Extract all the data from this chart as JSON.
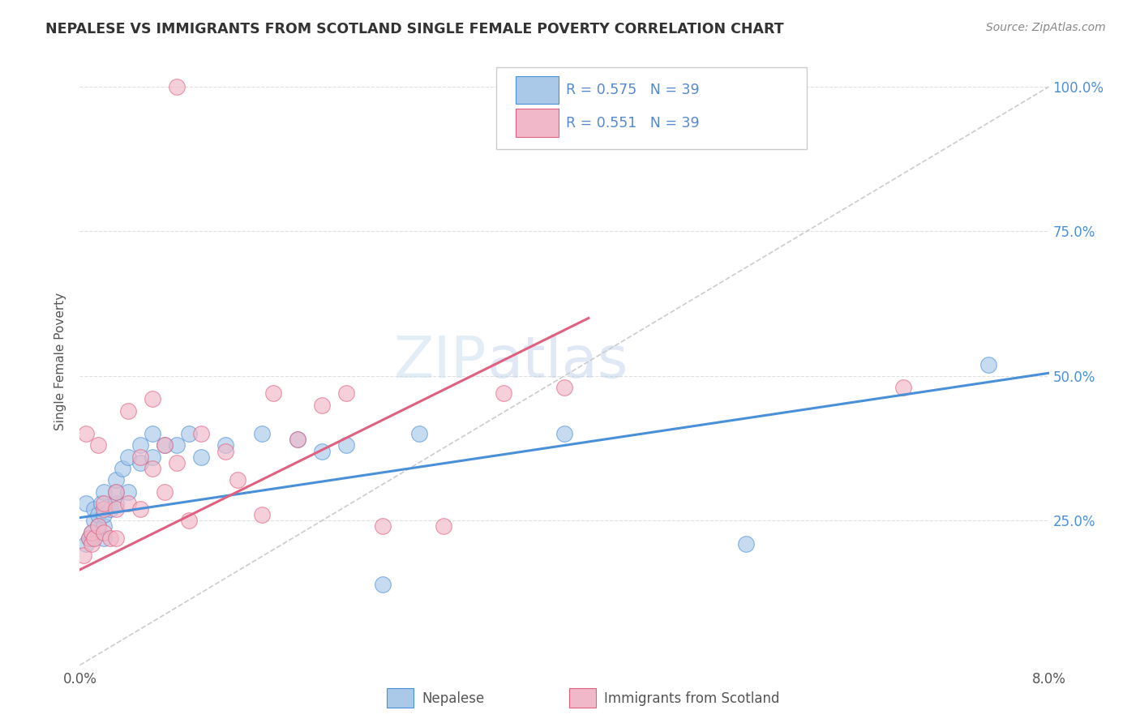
{
  "title": "NEPALESE VS IMMIGRANTS FROM SCOTLAND SINGLE FEMALE POVERTY CORRELATION CHART",
  "source": "Source: ZipAtlas.com",
  "ylabel": "Single Female Poverty",
  "R_nepalese": 0.575,
  "N_nepalese": 39,
  "R_scotland": 0.551,
  "N_scotland": 39,
  "color_nepalese": "#aac8e8",
  "color_scotland": "#f0b8c8",
  "color_line_nepalese": "#4a90d9",
  "color_line_scotland": "#e06080",
  "color_diagonal": "#cccccc",
  "color_title": "#333333",
  "color_source": "#888888",
  "color_legend_text": "#5588cc",
  "background_color": "#ffffff",
  "nepalese_x": [
    0.0005,
    0.0005,
    0.0008,
    0.001,
    0.001,
    0.0012,
    0.0012,
    0.0015,
    0.0015,
    0.0018,
    0.002,
    0.002,
    0.002,
    0.002,
    0.0025,
    0.003,
    0.003,
    0.003,
    0.0035,
    0.004,
    0.004,
    0.005,
    0.005,
    0.006,
    0.006,
    0.007,
    0.008,
    0.009,
    0.01,
    0.012,
    0.015,
    0.018,
    0.02,
    0.022,
    0.025,
    0.028,
    0.04,
    0.055,
    0.075
  ],
  "nepalese_y": [
    0.21,
    0.28,
    0.22,
    0.22,
    0.23,
    0.25,
    0.27,
    0.24,
    0.26,
    0.28,
    0.22,
    0.24,
    0.26,
    0.3,
    0.27,
    0.28,
    0.3,
    0.32,
    0.34,
    0.3,
    0.36,
    0.35,
    0.38,
    0.36,
    0.4,
    0.38,
    0.38,
    0.4,
    0.36,
    0.38,
    0.4,
    0.39,
    0.37,
    0.38,
    0.14,
    0.4,
    0.4,
    0.21,
    0.52
  ],
  "scotland_x": [
    0.0003,
    0.0005,
    0.0008,
    0.001,
    0.001,
    0.0012,
    0.0015,
    0.0015,
    0.002,
    0.002,
    0.002,
    0.0025,
    0.003,
    0.003,
    0.003,
    0.004,
    0.004,
    0.005,
    0.005,
    0.006,
    0.006,
    0.007,
    0.007,
    0.008,
    0.009,
    0.01,
    0.012,
    0.013,
    0.015,
    0.016,
    0.018,
    0.02,
    0.022,
    0.025,
    0.03,
    0.035,
    0.04,
    0.068,
    0.008
  ],
  "scotland_y": [
    0.19,
    0.4,
    0.22,
    0.21,
    0.23,
    0.22,
    0.24,
    0.38,
    0.23,
    0.27,
    0.28,
    0.22,
    0.27,
    0.3,
    0.22,
    0.44,
    0.28,
    0.27,
    0.36,
    0.34,
    0.46,
    0.3,
    0.38,
    0.35,
    0.25,
    0.4,
    0.37,
    0.32,
    0.26,
    0.47,
    0.39,
    0.45,
    0.47,
    0.24,
    0.24,
    0.47,
    0.48,
    0.48,
    1.0
  ],
  "xmin": 0.0,
  "xmax": 0.08,
  "ymin": 0.0,
  "ymax": 1.05,
  "blue_line_x0": 0.0,
  "blue_line_y0": 0.255,
  "blue_line_x1": 0.08,
  "blue_line_y1": 0.505,
  "pink_line_x0": 0.0,
  "pink_line_y0": 0.165,
  "pink_line_x1": 0.042,
  "pink_line_y1": 0.6
}
